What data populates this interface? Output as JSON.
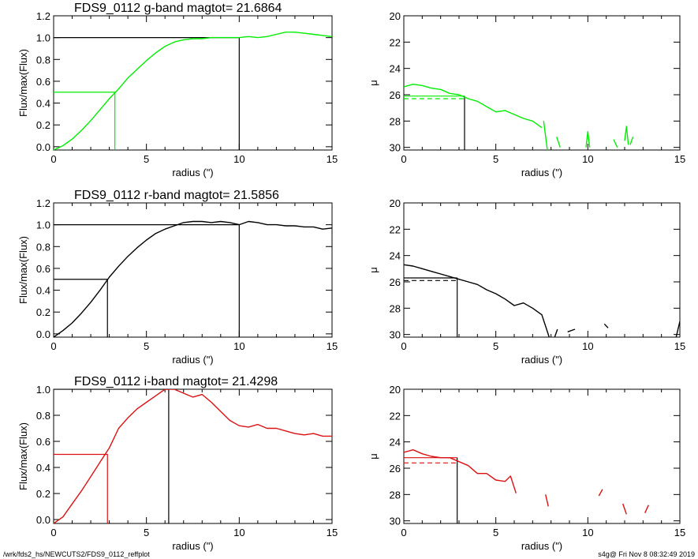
{
  "footer": {
    "left": "/wrk/fds2_hs/NEWCUTS2/FDS9_0112_reffplot",
    "right": "s4g@  Fri Nov  8 08:32:49 2019"
  },
  "chart_data": [
    {
      "type": "line",
      "title": "FDS9_0112 g-band  magtot=      21.6864",
      "xlabel": "radius (\")",
      "ylabel": "Flux/max(Flux)",
      "xlim": [
        0,
        15
      ],
      "ylim": [
        -0.03,
        1.2
      ],
      "xticks": [
        "0",
        "5",
        "10",
        "15"
      ],
      "yticks": [
        "0.0",
        "0.2",
        "0.4",
        "0.6",
        "0.8",
        "1.0",
        "1.2"
      ],
      "color": "#00ee00",
      "series": [
        {
          "x": [
            0,
            0.5,
            1,
            1.5,
            2,
            2.5,
            3,
            3.5,
            4,
            4.5,
            5,
            5.5,
            6,
            6.5,
            7,
            7.5,
            8,
            8.5,
            9,
            9.5,
            10,
            10.5,
            11,
            11.5,
            12,
            12.5,
            13,
            13.5,
            14,
            14.5,
            15
          ],
          "y": [
            -0.03,
            0.01,
            0.07,
            0.15,
            0.24,
            0.34,
            0.44,
            0.53,
            0.63,
            0.71,
            0.79,
            0.86,
            0.92,
            0.96,
            0.98,
            0.99,
            0.99,
            1.0,
            1.0,
            1.0,
            1.0,
            1.01,
            1.0,
            1.01,
            1.03,
            1.05,
            1.05,
            1.04,
            1.03,
            1.02,
            1.01
          ]
        }
      ],
      "markers": {
        "half_radius": 3.3,
        "half_flux": 0.5,
        "total_radius": 10,
        "total_flux": 1.0
      }
    },
    {
      "type": "line",
      "title": "",
      "xlabel": "radius (\")",
      "ylabel": "μ",
      "xlim": [
        0,
        15
      ],
      "ylim": [
        30.2,
        20
      ],
      "reversed_y": true,
      "xticks": [
        "0",
        "5",
        "10",
        "15"
      ],
      "yticks": [
        "20",
        "22",
        "24",
        "26",
        "28",
        "30"
      ],
      "color": "#00ee00",
      "series": [
        {
          "x": [
            0,
            0.5,
            1,
            1.5,
            2,
            2.5,
            3,
            3.5,
            4,
            4.5,
            5,
            5.5,
            6,
            6.5,
            7,
            7.5
          ],
          "y": [
            25.4,
            25.2,
            25.3,
            25.5,
            25.6,
            25.9,
            26.0,
            26.3,
            26.5,
            26.9,
            27.3,
            27.2,
            27.5,
            27.8,
            28.0,
            28.5
          ]
        },
        {
          "x": [
            7.6,
            7.8
          ],
          "y": [
            28.0,
            30.2
          ]
        },
        {
          "x": [
            8.3,
            8.5
          ],
          "y": [
            29.2,
            30.0
          ]
        },
        {
          "x": [
            9.9,
            10.0,
            10.1
          ],
          "y": [
            30.0,
            28.8,
            30.0
          ]
        },
        {
          "x": [
            11.4,
            11.6
          ],
          "y": [
            29.4,
            30.0
          ]
        },
        {
          "x": [
            12.0,
            12.1,
            12.2
          ],
          "y": [
            29.5,
            28.4,
            29.8
          ]
        },
        {
          "x": [
            12.3,
            12.45
          ],
          "y": [
            29.8,
            29.2
          ]
        }
      ],
      "markers": {
        "half_radius": 3.3,
        "mu_solid": 26.1,
        "mu_dashed": 26.3
      }
    },
    {
      "type": "line",
      "title": "FDS9_0112 r-band  magtot=      21.5856",
      "xlabel": "radius (\")",
      "ylabel": "Flux/max(Flux)",
      "xlim": [
        0,
        15
      ],
      "ylim": [
        -0.03,
        1.2
      ],
      "xticks": [
        "0",
        "5",
        "10",
        "15"
      ],
      "yticks": [
        "0.0",
        "0.2",
        "0.4",
        "0.6",
        "0.8",
        "1.0",
        "1.2"
      ],
      "color": "#000000",
      "series": [
        {
          "x": [
            0,
            0.5,
            1,
            1.5,
            2,
            2.5,
            3,
            3.5,
            4,
            4.5,
            5,
            5.5,
            6,
            6.5,
            7,
            7.5,
            8,
            8.5,
            9,
            9.5,
            10,
            10.5,
            11,
            11.5,
            12,
            12.5,
            13,
            13.5,
            14,
            14.5,
            15
          ],
          "y": [
            -0.03,
            0.03,
            0.1,
            0.19,
            0.29,
            0.4,
            0.52,
            0.62,
            0.71,
            0.79,
            0.86,
            0.92,
            0.96,
            0.99,
            1.02,
            1.03,
            1.03,
            1.02,
            1.03,
            1.02,
            1.0,
            1.03,
            1.02,
            1.0,
            1.0,
            0.99,
            0.99,
            0.98,
            0.98,
            0.96,
            0.97
          ]
        }
      ],
      "markers": {
        "half_radius": 2.9,
        "half_flux": 0.5,
        "total_radius": 10,
        "total_flux": 1.0
      }
    },
    {
      "type": "line",
      "title": "",
      "xlabel": "radius (\")",
      "ylabel": "μ",
      "xlim": [
        0,
        15
      ],
      "ylim": [
        30.2,
        20
      ],
      "reversed_y": true,
      "xticks": [
        "0",
        "5",
        "10",
        "15"
      ],
      "yticks": [
        "20",
        "22",
        "24",
        "26",
        "28",
        "30"
      ],
      "color": "#000000",
      "series": [
        {
          "x": [
            0,
            0.5,
            1,
            1.5,
            2,
            2.5,
            3,
            3.5,
            4,
            4.5,
            5,
            5.5,
            6,
            6.5,
            7,
            7.5,
            7.9
          ],
          "y": [
            24.7,
            24.8,
            25.0,
            25.2,
            25.4,
            25.6,
            25.8,
            26.0,
            26.2,
            26.6,
            26.9,
            27.3,
            27.8,
            27.6,
            28.0,
            28.5,
            30.2
          ]
        },
        {
          "x": [
            8.2,
            8.35
          ],
          "y": [
            30.2,
            29.6
          ]
        },
        {
          "x": [
            8.9,
            9.3
          ],
          "y": [
            29.8,
            29.6
          ]
        },
        {
          "x": [
            10.9,
            11.1
          ],
          "y": [
            29.2,
            29.5
          ]
        },
        {
          "x": [
            14.8,
            15.0
          ],
          "y": [
            30.2,
            29.0
          ]
        }
      ],
      "markers": {
        "half_radius": 2.9,
        "mu_solid": 25.7,
        "mu_dashed": 25.9
      }
    },
    {
      "type": "line",
      "title": "FDS9_0112 i-band  magtot=      21.4298",
      "xlabel": "radius (\")",
      "ylabel": "Flux/max(Flux)",
      "xlim": [
        0,
        15
      ],
      "ylim": [
        -0.03,
        1.0
      ],
      "xticks": [
        "0",
        "5",
        "10",
        "15"
      ],
      "yticks": [
        "0.0",
        "0.2",
        "0.4",
        "0.6",
        "0.8",
        "1.0"
      ],
      "color": "#dd1111",
      "series": [
        {
          "x": [
            0,
            0.5,
            1,
            1.5,
            2,
            2.5,
            3,
            3.5,
            4,
            4.5,
            5,
            5.5,
            6,
            6.5,
            7,
            7.5,
            8,
            8.5,
            9,
            9.5,
            10,
            10.5,
            11,
            11.5,
            12,
            12.5,
            13,
            13.5,
            14,
            14.5,
            15
          ],
          "y": [
            -0.03,
            0.02,
            0.12,
            0.22,
            0.33,
            0.44,
            0.55,
            0.7,
            0.78,
            0.85,
            0.9,
            0.95,
            1.0,
            1.0,
            0.97,
            0.94,
            0.96,
            0.9,
            0.83,
            0.76,
            0.72,
            0.71,
            0.73,
            0.7,
            0.7,
            0.68,
            0.66,
            0.65,
            0.66,
            0.64,
            0.64
          ]
        }
      ],
      "markers": {
        "half_radius": 2.9,
        "half_flux": 0.5,
        "total_radius": 6.2,
        "total_flux": 1.0
      }
    },
    {
      "type": "line",
      "title": "",
      "xlabel": "radius (\")",
      "ylabel": "μ",
      "xlim": [
        0,
        15
      ],
      "ylim": [
        30.2,
        20
      ],
      "reversed_y": true,
      "xticks": [
        "0",
        "5",
        "10",
        "15"
      ],
      "yticks": [
        "20",
        "22",
        "24",
        "26",
        "28",
        "30"
      ],
      "color": "#dd1111",
      "series": [
        {
          "x": [
            0,
            0.5,
            1,
            1.5,
            2,
            2.5,
            3,
            3.5,
            4,
            4.5,
            5,
            5.5,
            5.8,
            6.1
          ],
          "y": [
            24.8,
            24.6,
            24.9,
            25.1,
            25.2,
            25.2,
            25.5,
            25.8,
            26.4,
            26.4,
            26.9,
            27.0,
            26.6,
            27.9
          ]
        },
        {
          "x": [
            7.7,
            7.85
          ],
          "y": [
            28.0,
            28.9
          ]
        },
        {
          "x": [
            10.6,
            10.8
          ],
          "y": [
            28.1,
            27.6
          ]
        },
        {
          "x": [
            11.9,
            12.1
          ],
          "y": [
            28.7,
            29.5
          ]
        },
        {
          "x": [
            13.1,
            13.3
          ],
          "y": [
            29.4,
            28.8
          ]
        }
      ],
      "markers": {
        "half_radius": 2.9,
        "mu_solid": 25.2,
        "mu_dashed": 25.6
      }
    }
  ]
}
